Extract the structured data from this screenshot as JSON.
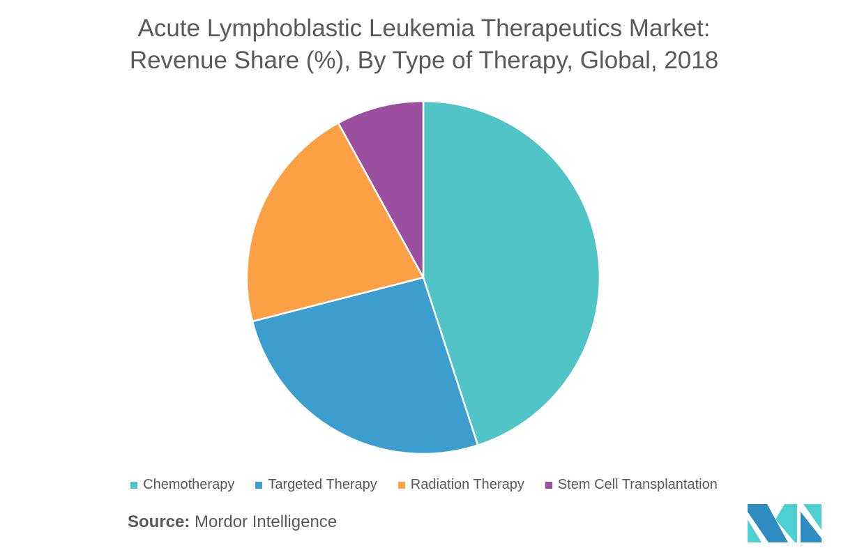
{
  "chart_data": {
    "type": "pie",
    "title": "Acute Lymphoblastic Leukemia Therapeutics Market:",
    "subtitle": "Revenue Share (%), By Type of Therapy, Global, 2018",
    "categories": [
      "Chemotherapy",
      "Targeted Therapy",
      "Radiation Therapy",
      "Stem Cell Transplantation"
    ],
    "values": [
      45,
      26,
      21,
      8
    ],
    "colors": [
      "#50C4C6",
      "#3C9ECF",
      "#FBA045",
      "#9B4F9F"
    ],
    "legend_position": "bottom"
  },
  "source": {
    "label": "Source:",
    "text": "Mordor Intelligence"
  },
  "logo": {
    "text": "Mordor Intelligence",
    "colors": [
      "#2E8CC0",
      "#4ECFD0"
    ]
  }
}
